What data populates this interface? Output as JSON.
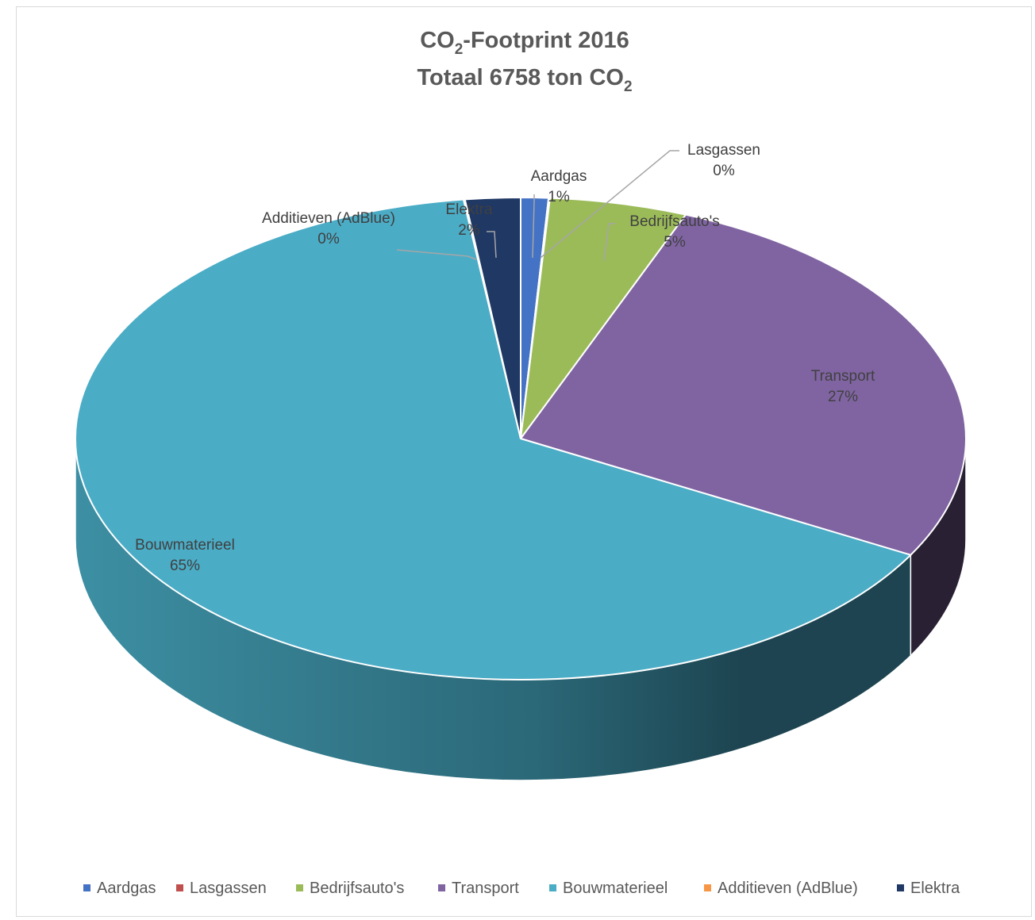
{
  "chart_data": {
    "type": "pie",
    "title": {
      "line1_prefix": "CO",
      "line1_sub": "2",
      "line1_suffix": "-Footprint 2016",
      "line2_prefix": "Totaal 6758 ton CO",
      "line2_sub": "2"
    },
    "categories": [
      "Aardgas",
      "Lasgassen",
      "Bedrijfsauto's",
      "Transport",
      "Bouwmaterieel",
      "Additieven (AdBlue)",
      "Elektra"
    ],
    "values": [
      1,
      0.05,
      5,
      27,
      65,
      0.05,
      2
    ],
    "data_labels": [
      "1%",
      "0%",
      "5%",
      "27%",
      "65%",
      "0%",
      "2%"
    ],
    "colors": [
      "#4472c4",
      "#c0504d",
      "#9bbb59",
      "#8064a2",
      "#4bacc6",
      "#f79646",
      "#1f3864"
    ],
    "legend_position": "bottom",
    "style": "3d-pie"
  }
}
